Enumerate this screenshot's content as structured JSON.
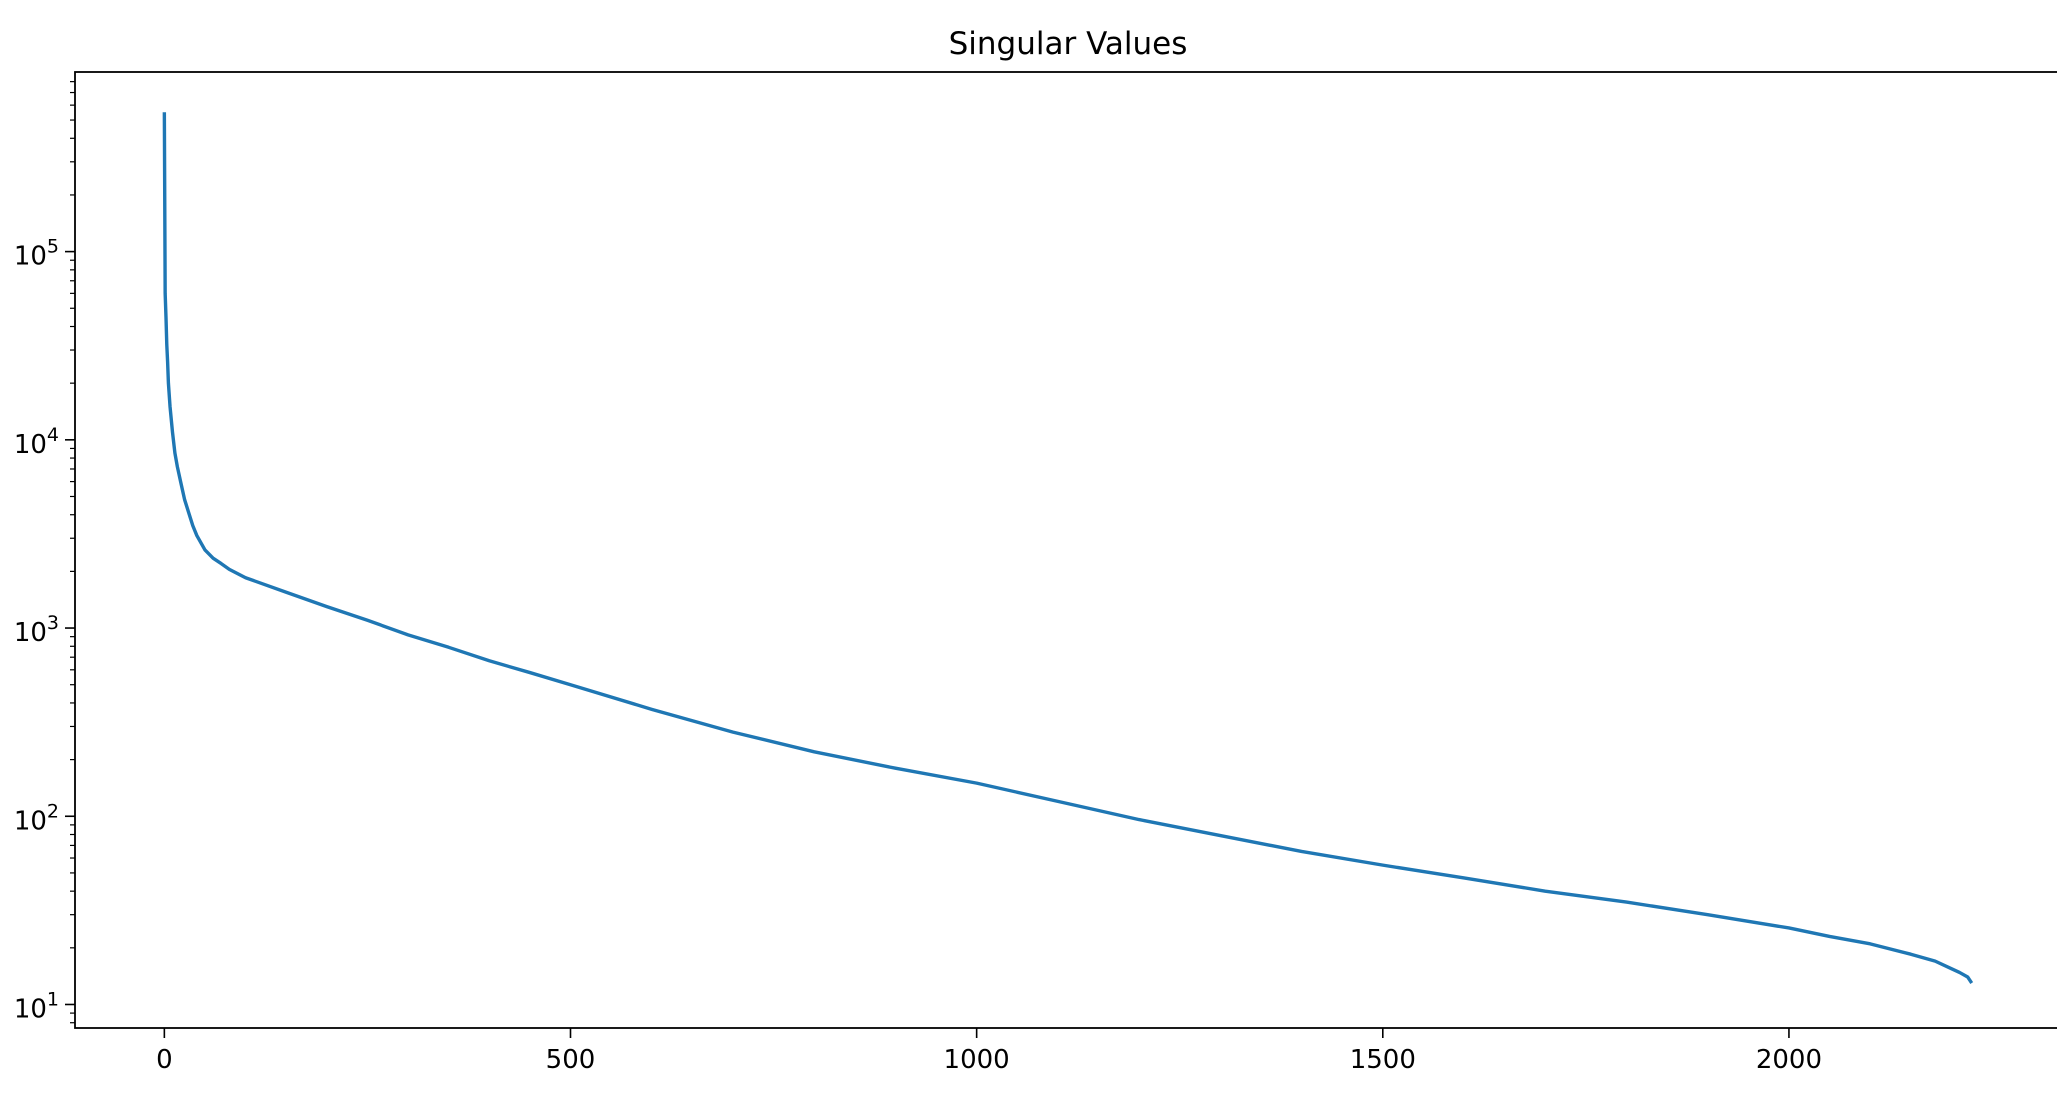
{
  "chart_data": {
    "type": "line",
    "title": "Singular Values",
    "xlabel": "",
    "ylabel": "",
    "yscale": "log",
    "xlim": [
      -110,
      2330
    ],
    "ylim": [
      7.5,
      900000
    ],
    "grid": false,
    "legend": "none",
    "line_color": "#1f77b4",
    "x_ticks": [
      {
        "value": 0,
        "label": "0"
      },
      {
        "value": 500,
        "label": "500"
      },
      {
        "value": 1000,
        "label": "1000"
      },
      {
        "value": 1500,
        "label": "1500"
      },
      {
        "value": 2000,
        "label": "2000"
      }
    ],
    "y_ticks": [
      {
        "value": 10,
        "base": "10",
        "exp": "1"
      },
      {
        "value": 100,
        "base": "10",
        "exp": "2"
      },
      {
        "value": 1000,
        "base": "10",
        "exp": "3"
      },
      {
        "value": 10000,
        "base": "10",
        "exp": "4"
      },
      {
        "value": 100000,
        "base": "10",
        "exp": "5"
      }
    ],
    "series": [
      {
        "x": [
          0,
          1,
          2,
          3,
          4,
          5,
          7,
          10,
          13,
          16,
          20,
          25,
          30,
          35,
          40,
          50,
          60,
          70,
          80,
          100,
          150,
          200,
          250,
          300,
          350,
          400,
          450,
          500,
          600,
          700,
          800,
          900,
          1000,
          1100,
          1200,
          1300,
          1400,
          1500,
          1600,
          1700,
          1800,
          1900,
          2000,
          2050,
          2100,
          2150,
          2180,
          2200,
          2210,
          2220,
          2225
        ],
        "y": [
          550000,
          60000,
          45000,
          32000,
          26000,
          20000,
          15000,
          11000,
          8500,
          7200,
          6000,
          4800,
          4100,
          3500,
          3100,
          2600,
          2350,
          2200,
          2050,
          1850,
          1550,
          1300,
          1100,
          920,
          790,
          670,
          580,
          500,
          370,
          280,
          220,
          180,
          150,
          120,
          96,
          79,
          65,
          55,
          47,
          40,
          35,
          30,
          25.5,
          23,
          21,
          18.5,
          17,
          15.5,
          14.8,
          14,
          13
        ]
      }
    ]
  }
}
